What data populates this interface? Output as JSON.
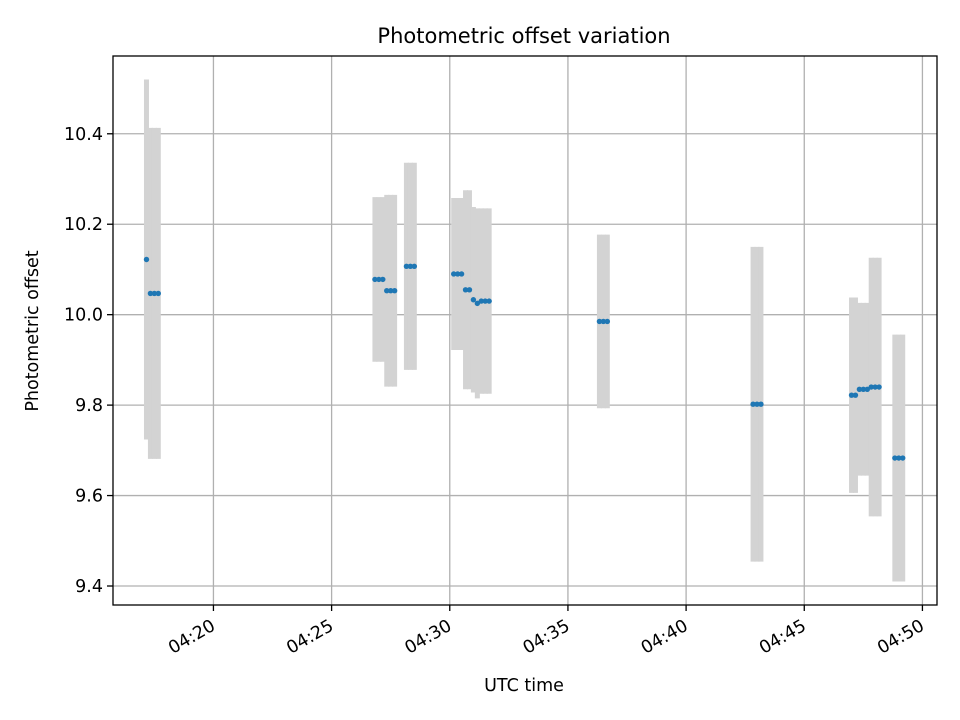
{
  "chart_data": {
    "type": "scatter",
    "title": "Photometric offset variation",
    "xlabel": "UTC time",
    "ylabel": "Photometric offset",
    "xlim": [
      "04:15:45",
      "04:50:37"
    ],
    "ylim": [
      9.358,
      10.572
    ],
    "x_ticks": [
      "04:20",
      "04:25",
      "04:30",
      "04:35",
      "04:40",
      "04:45",
      "04:50"
    ],
    "y_ticks": [
      9.4,
      9.6,
      9.8,
      10.0,
      10.2,
      10.4
    ],
    "grid": true,
    "colors": {
      "point": "#1f77b4",
      "errorbar": "#d3d3d3",
      "grid": "#b0b0b0",
      "axes": "#000000"
    },
    "points": [
      {
        "time": "04:17:10",
        "value": 10.122,
        "error": 0.398
      },
      {
        "time": "04:17:20",
        "value": 10.047,
        "error": 0.366
      },
      {
        "time": "04:17:30",
        "value": 10.047,
        "error": 0.366
      },
      {
        "time": "04:17:40",
        "value": 10.047,
        "error": 0.366
      },
      {
        "time": "04:26:50",
        "value": 10.078,
        "error": 0.182
      },
      {
        "time": "04:27:00",
        "value": 10.078,
        "error": 0.182
      },
      {
        "time": "04:27:10",
        "value": 10.078,
        "error": 0.182
      },
      {
        "time": "04:27:20",
        "value": 10.053,
        "error": 0.212
      },
      {
        "time": "04:27:30",
        "value": 10.053,
        "error": 0.212
      },
      {
        "time": "04:27:40",
        "value": 10.053,
        "error": 0.212
      },
      {
        "time": "04:28:10",
        "value": 10.107,
        "error": 0.229
      },
      {
        "time": "04:28:20",
        "value": 10.107,
        "error": 0.229
      },
      {
        "time": "04:28:30",
        "value": 10.107,
        "error": 0.229
      },
      {
        "time": "04:30:10",
        "value": 10.09,
        "error": 0.168
      },
      {
        "time": "04:30:20",
        "value": 10.09,
        "error": 0.168
      },
      {
        "time": "04:30:30",
        "value": 10.09,
        "error": 0.168
      },
      {
        "time": "04:30:40",
        "value": 10.055,
        "error": 0.22
      },
      {
        "time": "04:30:50",
        "value": 10.055,
        "error": 0.22
      },
      {
        "time": "04:31:00",
        "value": 10.033,
        "error": 0.205
      },
      {
        "time": "04:31:10",
        "value": 10.025,
        "error": 0.21
      },
      {
        "time": "04:31:20",
        "value": 10.03,
        "error": 0.205
      },
      {
        "time": "04:31:30",
        "value": 10.03,
        "error": 0.205
      },
      {
        "time": "04:31:40",
        "value": 10.03,
        "error": 0.205
      },
      {
        "time": "04:36:20",
        "value": 9.985,
        "error": 0.192
      },
      {
        "time": "04:36:30",
        "value": 9.985,
        "error": 0.192
      },
      {
        "time": "04:36:40",
        "value": 9.985,
        "error": 0.192
      },
      {
        "time": "04:42:50",
        "value": 9.802,
        "error": 0.348
      },
      {
        "time": "04:43:00",
        "value": 9.802,
        "error": 0.348
      },
      {
        "time": "04:43:10",
        "value": 9.802,
        "error": 0.348
      },
      {
        "time": "04:46:60",
        "value": 9.822,
        "error": 0.216
      },
      {
        "time": "04:47:10",
        "value": 9.822,
        "error": 0.216
      },
      {
        "time": "04:47:20",
        "value": 9.835,
        "error": 0.191
      },
      {
        "time": "04:47:30",
        "value": 9.835,
        "error": 0.191
      },
      {
        "time": "04:47:40",
        "value": 9.835,
        "error": 0.191
      },
      {
        "time": "04:47:50",
        "value": 9.84,
        "error": 0.286
      },
      {
        "time": "04:47:60",
        "value": 9.84,
        "error": 0.286
      },
      {
        "time": "04:48:10",
        "value": 9.84,
        "error": 0.286
      },
      {
        "time": "04:48:50",
        "value": 9.683,
        "error": 0.273
      },
      {
        "time": "04:48:60",
        "value": 9.683,
        "error": 0.273
      },
      {
        "time": "04:49:10",
        "value": 9.683,
        "error": 0.273
      }
    ]
  }
}
